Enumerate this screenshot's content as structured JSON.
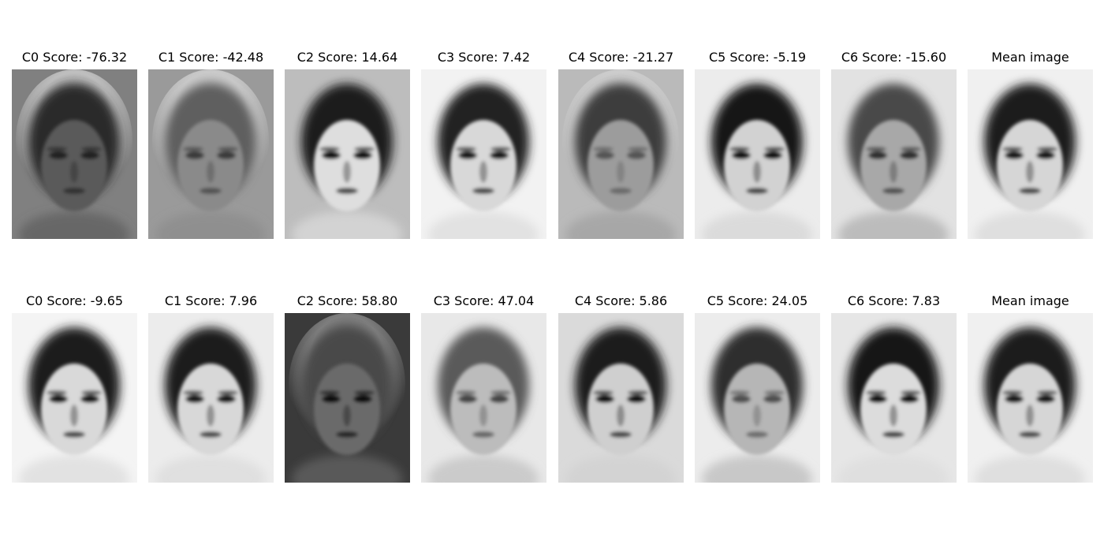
{
  "rows": [
    {
      "panels": [
        {
          "title": "C0 Score: -76.32",
          "bg": "#808080",
          "hair": "#2b2b2b",
          "face": "#5a5a5a",
          "halo": "#f4f4f4",
          "feature": "#202020"
        },
        {
          "title": "C1 Score: -42.48",
          "bg": "#9a9a9a",
          "hair": "#5e5e5e",
          "face": "#8a8a8a",
          "halo": "#f2f2f2",
          "feature": "#3a3a3a"
        },
        {
          "title": "C2 Score: 14.64",
          "bg": "#bdbdbd",
          "hair": "#1e1e1e",
          "face": "#dedede",
          "halo": "#bdbdbd",
          "feature": "#101010"
        },
        {
          "title": "C3 Score: 7.42",
          "bg": "#f2f2f2",
          "hair": "#202020",
          "face": "#d8d8d8",
          "halo": "#f2f2f2",
          "feature": "#141414"
        },
        {
          "title": "C4 Score: -21.27",
          "bg": "#bababa",
          "hair": "#3d3d3d",
          "face": "#9c9c9c",
          "halo": "#dcdcdc",
          "feature": "#555555"
        },
        {
          "title": "C5 Score: -5.19",
          "bg": "#ececec",
          "hair": "#161616",
          "face": "#d2d2d2",
          "halo": "#ececec",
          "feature": "#0d0d0d"
        },
        {
          "title": "C6 Score: -15.60",
          "bg": "#e2e2e2",
          "hair": "#4a4a4a",
          "face": "#a8a8a8",
          "halo": "#e2e2e2",
          "feature": "#2f2f2f"
        },
        {
          "title": "Mean image",
          "bg": "#f0f0f0",
          "hair": "#1a1a1a",
          "face": "#d6d6d6",
          "halo": "#f0f0f0",
          "feature": "#121212"
        }
      ]
    },
    {
      "panels": [
        {
          "title": "C0 Score: -9.65",
          "bg": "#f4f4f4",
          "hair": "#1a1a1a",
          "face": "#d9d9d9",
          "halo": "#f4f4f4",
          "feature": "#121212"
        },
        {
          "title": "C1 Score: 7.96",
          "bg": "#ececec",
          "hair": "#1c1c1c",
          "face": "#d8d8d8",
          "halo": "#ececec",
          "feature": "#121212"
        },
        {
          "title": "C2 Score: 58.80",
          "bg": "#3a3a3a",
          "hair": "#4a4a4a",
          "face": "#6a6a6a",
          "halo": "#b8b8b8",
          "feature": "#0c0c0c"
        },
        {
          "title": "C3 Score: 47.04",
          "bg": "#e8e8e8",
          "hair": "#5a5a5a",
          "face": "#bcbcbc",
          "halo": "#e8e8e8",
          "feature": "#444444"
        },
        {
          "title": "C4 Score: 5.86",
          "bg": "#dadada",
          "hair": "#1c1c1c",
          "face": "#cfcfcf",
          "halo": "#dadada",
          "feature": "#0e0e0e"
        },
        {
          "title": "C5 Score: 24.05",
          "bg": "#ececec",
          "hair": "#2d2d2d",
          "face": "#b6b6b6",
          "halo": "#ececec",
          "feature": "#505050"
        },
        {
          "title": "C6 Score: 7.83",
          "bg": "#e6e6e6",
          "hair": "#121212",
          "face": "#dcdcdc",
          "halo": "#e6e6e6",
          "feature": "#0b0b0b"
        },
        {
          "title": "Mean image",
          "bg": "#f0f0f0",
          "hair": "#1a1a1a",
          "face": "#d6d6d6",
          "halo": "#f0f0f0",
          "feature": "#121212"
        }
      ]
    }
  ]
}
